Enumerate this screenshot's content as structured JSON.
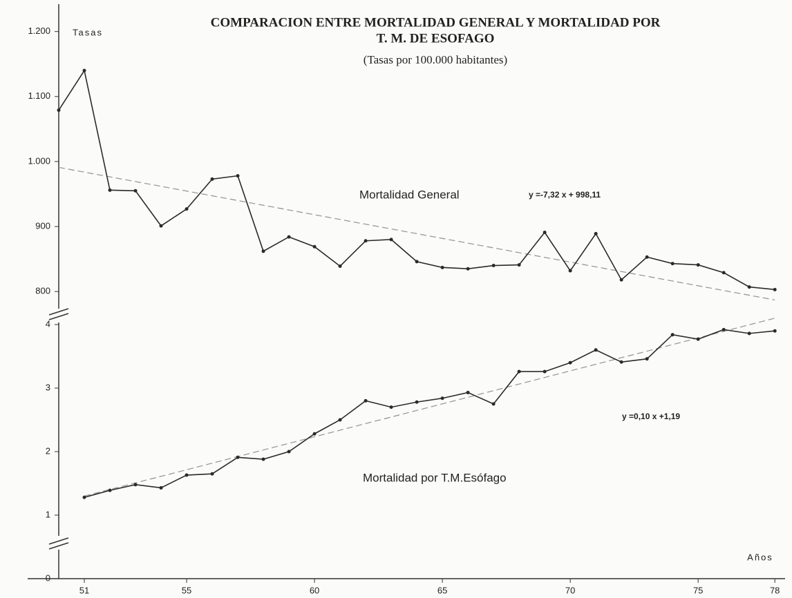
{
  "chart_data": [
    {
      "type": "line",
      "title": [
        "COMPARACION ENTRE MORTALIDAD GENERAL Y MORTALIDAD POR",
        "T. M. DE ESOFAGO"
      ],
      "subtitle": "(Tasas por 100.000 habitantes)",
      "y_label": "Tasas",
      "xlim": [
        50,
        78.4
      ],
      "ylim": [
        780,
        1240
      ],
      "yticks": [
        800,
        900,
        {
          "value": 1000,
          "label": "1.000"
        },
        {
          "value": 1100,
          "label": "1.100"
        },
        {
          "value": 1200,
          "label": "1.200"
        }
      ],
      "x": [
        50,
        51,
        52,
        53,
        54,
        55,
        56,
        57,
        58,
        59,
        60,
        61,
        62,
        63,
        64,
        65,
        66,
        67,
        68,
        69,
        70,
        71,
        72,
        73,
        74,
        75,
        76,
        77,
        78
      ],
      "series": [
        {
          "name": "Mortalidad General",
          "color": "#2a2a2a",
          "values": [
            1079,
            1140,
            956,
            955,
            901,
            927,
            973,
            978,
            862,
            884,
            869,
            839,
            878,
            880,
            846,
            837,
            835,
            840,
            841,
            891,
            832,
            889,
            818,
            853,
            843,
            841,
            829,
            807,
            803
          ]
        }
      ],
      "trend": {
        "label": "y =-7,32 x + 998,11",
        "x": [
          50,
          78
        ],
        "values": [
          991,
          787
        ],
        "color": "#999"
      }
    },
    {
      "type": "line",
      "x_label": "Años",
      "xlim": [
        50,
        78.4
      ],
      "xticks": [
        51,
        55,
        60,
        65,
        70,
        75,
        78
      ],
      "ylim": [
        0,
        4.3
      ],
      "yticks": [
        0,
        1,
        2,
        3,
        4
      ],
      "x": [
        51,
        52,
        53,
        54,
        55,
        56,
        57,
        58,
        59,
        60,
        61,
        62,
        63,
        64,
        65,
        66,
        67,
        68,
        69,
        70,
        71,
        72,
        73,
        74,
        75,
        76,
        77,
        78
      ],
      "series": [
        {
          "name": "Mortalidad por T.M.Esófago",
          "color": "#2a2a2a",
          "values": [
            1.28,
            1.39,
            1.48,
            1.43,
            1.63,
            1.65,
            1.91,
            1.88,
            2.0,
            2.28,
            2.5,
            2.8,
            2.7,
            2.78,
            2.84,
            2.93,
            2.75,
            3.26,
            3.26,
            3.4,
            3.6,
            3.41,
            3.46,
            3.84,
            3.77,
            3.92,
            3.86,
            3.9
          ]
        }
      ],
      "trend": {
        "label": "y =0,10 x +1,19",
        "x": [
          51,
          78
        ],
        "values": [
          1.3,
          4.1
        ],
        "color": "#999"
      }
    }
  ]
}
